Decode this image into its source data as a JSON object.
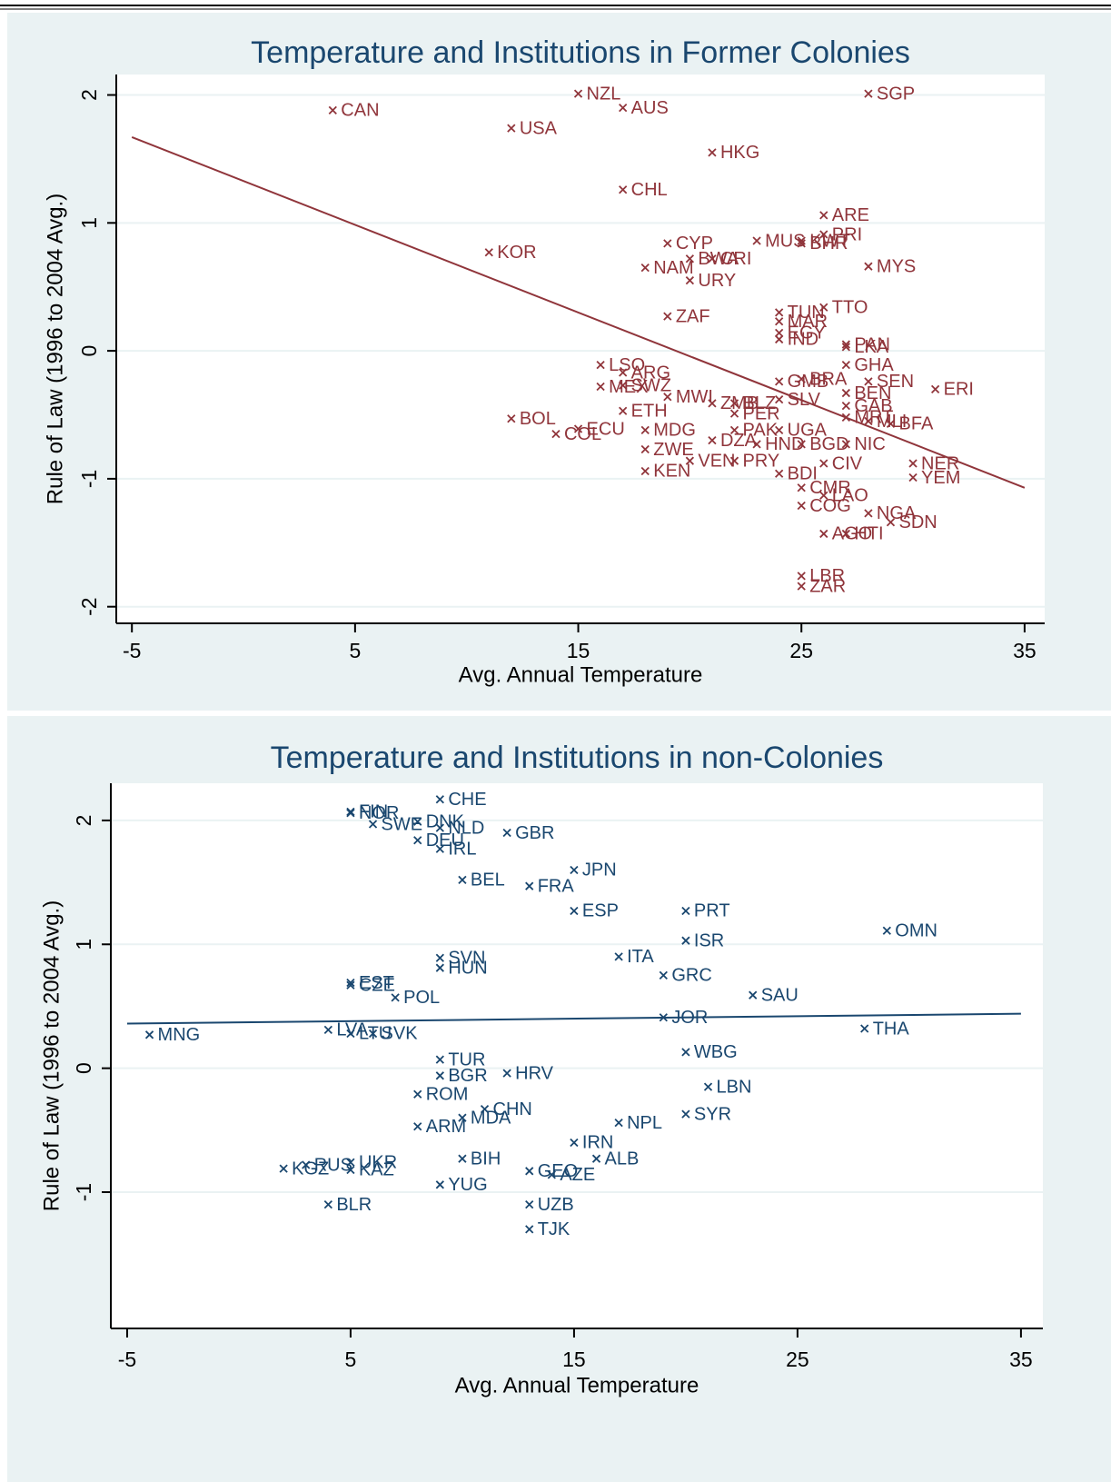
{
  "chart_data": [
    {
      "type": "scatter",
      "title": "Temperature and Institutions in Former Colonies",
      "x_label": "Avg. Annual Temperature",
      "y_label": "Rule of Law (1996 to 2004 Avg.)",
      "color": "#90353b",
      "grid": true,
      "xlim": [
        -5.7,
        35.9
      ],
      "ylim": [
        -2.13,
        2.16
      ],
      "xticks": [
        -5,
        5,
        15,
        25,
        35
      ],
      "yticks": [
        -2,
        -1,
        0,
        1,
        2
      ],
      "point_labels": [
        "CAN",
        "NZL",
        "AUS",
        "USA",
        "SGP",
        "HKG",
        "CHL",
        "ARE",
        "MUS",
        "KWT",
        "PRI",
        "BHR",
        "CYP",
        "BWA",
        "CRI",
        "KOR",
        "NAM",
        "MYS",
        "URY",
        "TTO",
        "TUN",
        "ZAF",
        "MAR",
        "EGY",
        "IND",
        "LKA",
        "PAN",
        "LSO",
        "ARG",
        "MEX",
        "SWZ",
        "ETH",
        "MWI",
        "BOL",
        "ECU",
        "COL",
        "MDG",
        "KEN",
        "ZWE",
        "ZMB",
        "BLZ",
        "PER",
        "PAK",
        "DZA",
        "HND",
        "VEN",
        "PRY",
        "UGA",
        "BGD",
        "NIC",
        "BDI",
        "CMR",
        "COG",
        "CIV",
        "LAO",
        "NGA",
        "SDN",
        "AGO",
        "HTI",
        "YEM",
        "ERI",
        "GHA",
        "SEN",
        "GAB",
        "MRT",
        "MLI",
        "BFA",
        "BRA",
        "GMB",
        "SLV",
        "BEN",
        "LBR",
        "ZAR",
        "NER"
      ],
      "x": [
        4,
        15,
        17,
        12,
        28,
        21,
        17,
        26,
        23,
        25,
        26,
        25,
        19,
        20,
        21,
        11,
        18,
        28,
        20,
        26,
        24,
        19,
        24,
        24,
        24,
        27,
        27,
        16,
        17,
        16,
        17,
        17,
        19,
        12,
        15,
        14,
        18,
        18,
        18,
        21,
        22,
        22,
        22,
        21,
        23,
        20,
        22,
        24,
        25,
        27,
        24,
        25,
        25,
        26,
        26,
        28,
        29,
        26,
        27,
        30,
        31,
        27,
        28,
        27,
        27,
        28,
        29,
        25,
        24,
        24,
        27,
        25,
        25,
        30
      ],
      "values": [
        1.88,
        2.01,
        1.9,
        1.74,
        2.01,
        1.55,
        1.26,
        1.06,
        0.86,
        0.86,
        0.91,
        0.84,
        0.84,
        0.72,
        0.72,
        0.77,
        0.65,
        0.66,
        0.55,
        0.34,
        0.3,
        0.27,
        0.23,
        0.14,
        0.09,
        0.03,
        0.05,
        -0.11,
        -0.17,
        -0.28,
        -0.27,
        -0.47,
        -0.36,
        -0.53,
        -0.61,
        -0.65,
        -0.62,
        -0.94,
        -0.77,
        -0.41,
        -0.41,
        -0.49,
        -0.62,
        -0.7,
        -0.73,
        -0.86,
        -0.86,
        -0.62,
        -0.73,
        -0.73,
        -0.96,
        -1.07,
        -1.21,
        -0.88,
        -1.13,
        -1.27,
        -1.34,
        -1.43,
        -1.43,
        -0.99,
        -0.3,
        -0.11,
        -0.24,
        -0.43,
        -0.52,
        -0.55,
        -0.57,
        -0.22,
        -0.24,
        -0.38,
        -0.33,
        -1.76,
        -1.84,
        -0.88
      ],
      "fit": {
        "x": [
          -5,
          35
        ],
        "values": [
          1.67,
          -1.07
        ]
      }
    },
    {
      "type": "scatter",
      "title": "Temperature and Institutions in non-Colonies",
      "x_label": "Avg. Annual Temperature",
      "y_label": "Rule of Law (1996 to 2004 Avg.)",
      "color": "#1a476f",
      "grid": true,
      "xlim": [
        -5.73,
        35.98
      ],
      "ylim": [
        -2.1,
        2.3
      ],
      "xticks": [
        -5,
        5,
        15,
        25,
        35
      ],
      "yticks": [
        -1,
        0,
        1,
        2
      ],
      "point_labels": [
        "CHE",
        "FIN",
        "NOR",
        "SWE",
        "DNK",
        "NLD",
        "GBR",
        "DEU",
        "IRL",
        "JPN",
        "BEL",
        "FRA",
        "ESP",
        "PRT",
        "ISR",
        "OMN",
        "ITA",
        "SVN",
        "HUN",
        "GRC",
        "EST",
        "CZE",
        "POL",
        "SAU",
        "JOR",
        "THA",
        "MNG",
        "LVA",
        "LTU",
        "SVK",
        "WBG",
        "TUR",
        "BGR",
        "HRV",
        "LBN",
        "ROM",
        "CHN",
        "MDA",
        "SYR",
        "ARM",
        "NPL",
        "IRN",
        "ALB",
        "BIH",
        "KGZ",
        "RUS",
        "UKR",
        "KAZ",
        "GEO",
        "AZE",
        "YUG",
        "BLR",
        "UZB",
        "TJK"
      ],
      "x": [
        9,
        5,
        5,
        6,
        8,
        9,
        12,
        8,
        9,
        15,
        10,
        13,
        15,
        20,
        20,
        29,
        17,
        9,
        9,
        19,
        5,
        5,
        7,
        23,
        19,
        28,
        -4,
        4,
        5,
        6,
        20,
        9,
        9,
        12,
        21,
        8,
        11,
        10,
        20,
        8,
        17,
        15,
        16,
        10,
        2,
        3,
        5,
        5,
        13,
        14,
        9,
        4,
        13,
        13
      ],
      "values": [
        2.17,
        2.07,
        2.06,
        1.97,
        1.99,
        1.94,
        1.9,
        1.84,
        1.77,
        1.6,
        1.52,
        1.47,
        1.27,
        1.27,
        1.03,
        1.11,
        0.9,
        0.89,
        0.81,
        0.75,
        0.69,
        0.67,
        0.57,
        0.59,
        0.41,
        0.32,
        0.27,
        0.31,
        0.28,
        0.28,
        0.13,
        0.07,
        -0.06,
        -0.04,
        -0.15,
        -0.21,
        -0.33,
        -0.4,
        -0.37,
        -0.47,
        -0.44,
        -0.6,
        -0.73,
        -0.73,
        -0.81,
        -0.78,
        -0.76,
        -0.82,
        -0.83,
        -0.86,
        -0.94,
        -1.1,
        -1.1,
        -1.3
      ],
      "fit": {
        "x": [
          -5,
          35
        ],
        "values": [
          0.36,
          0.44
        ]
      }
    }
  ]
}
